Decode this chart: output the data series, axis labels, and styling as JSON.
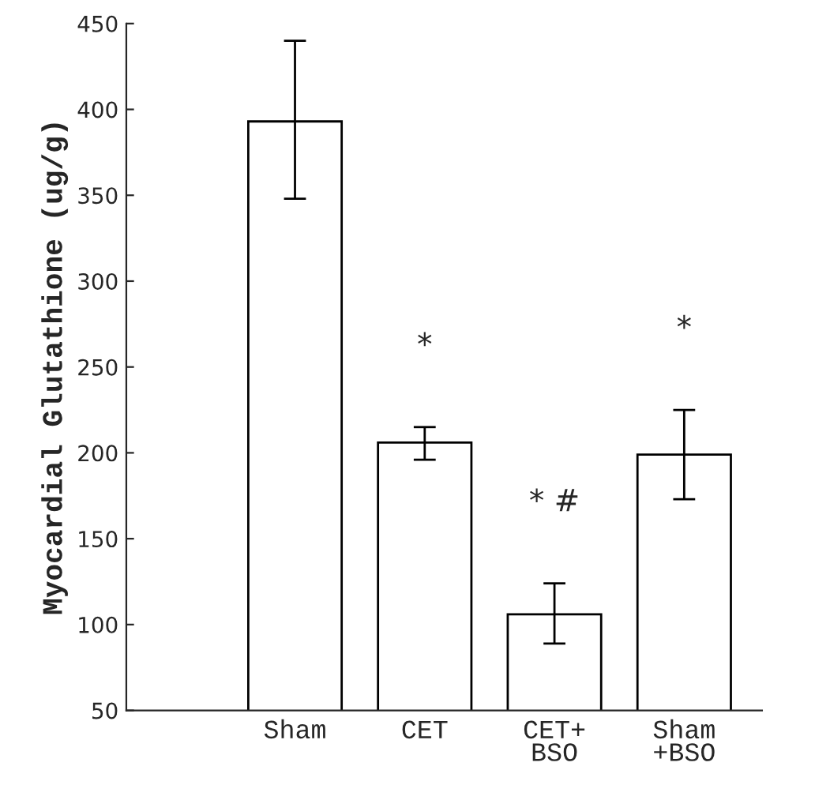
{
  "chart_data": {
    "type": "bar",
    "ylabel": "Myocardial Glutathione (ug/g)",
    "categories": [
      "Sham",
      "CET",
      "CET+\nBSO",
      "Sham\n+BSO"
    ],
    "series": [
      {
        "color": "#ffffff",
        "values": [
          393,
          206,
          106,
          199
        ],
        "errors": [
          [
            348,
            440
          ],
          [
            196,
            215
          ],
          [
            89,
            124
          ],
          [
            173,
            225
          ]
        ]
      }
    ],
    "ylim": [
      50,
      450
    ],
    "yticks": [
      50,
      100,
      150,
      200,
      250,
      300,
      350,
      400,
      450
    ],
    "annotations": [
      "*",
      "* #",
      "*"
    ],
    "grid": false,
    "legend": false
  }
}
